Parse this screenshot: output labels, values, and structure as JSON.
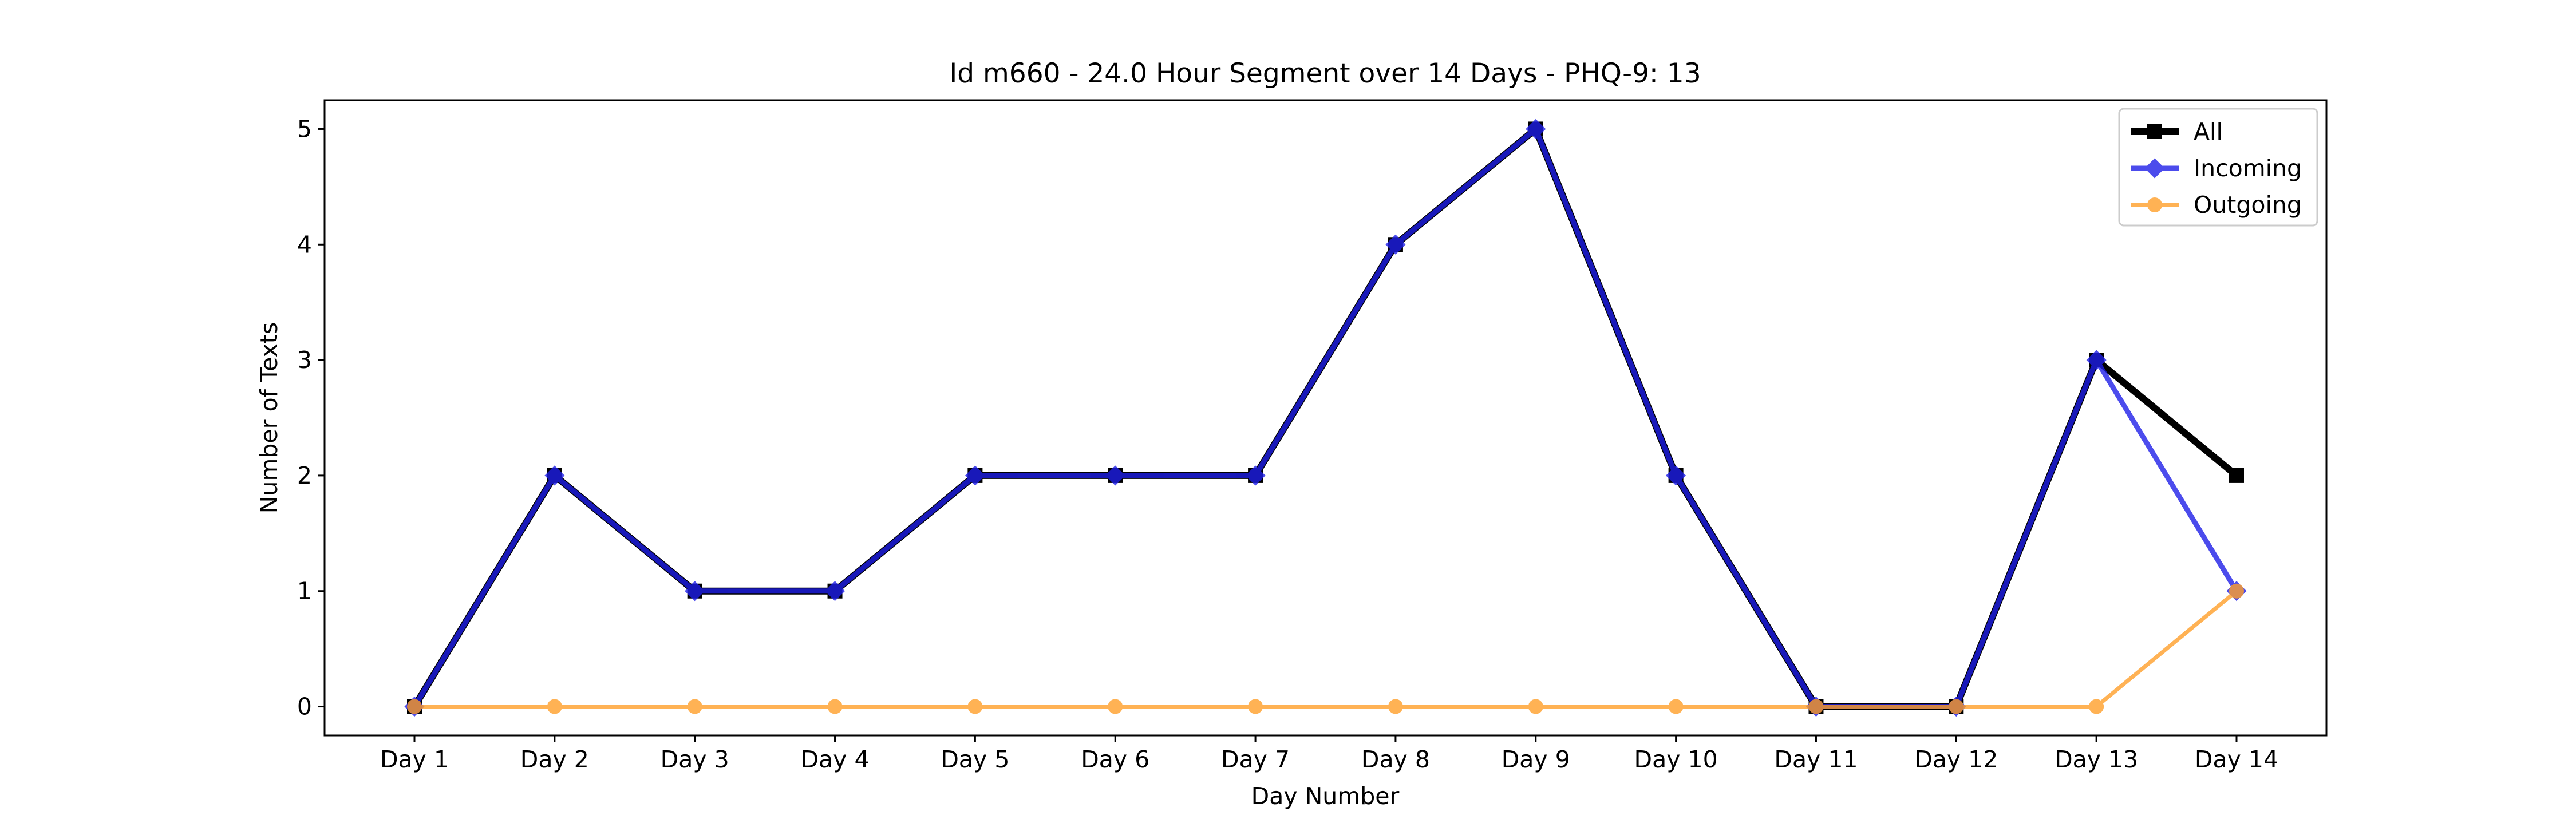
{
  "chart_data": {
    "type": "line",
    "title": "Id m660 - 24.0 Hour Segment over 14 Days - PHQ-9: 13",
    "xlabel": "Day Number",
    "ylabel": "Number of Texts",
    "categories": [
      "Day 1",
      "Day 2",
      "Day 3",
      "Day 4",
      "Day 5",
      "Day 6",
      "Day 7",
      "Day 8",
      "Day 9",
      "Day 10",
      "Day 11",
      "Day 12",
      "Day 13",
      "Day 14"
    ],
    "ylim": [
      -0.25,
      5.25
    ],
    "yticks": [
      "0",
      "1",
      "2",
      "3",
      "4",
      "5"
    ],
    "grid": false,
    "legend_position": "top-right",
    "series": [
      {
        "name": "All",
        "color": "#000000",
        "marker": "square",
        "values": [
          0,
          2,
          1,
          1,
          2,
          2,
          2,
          4,
          5,
          2,
          0,
          0,
          3,
          2
        ]
      },
      {
        "name": "Incoming",
        "color": "#1f1fe8",
        "marker": "diamond",
        "values": [
          0,
          2,
          1,
          1,
          2,
          2,
          2,
          4,
          5,
          2,
          0,
          0,
          3,
          1
        ]
      },
      {
        "name": "Outgoing",
        "color": "#ff9f2a",
        "marker": "circle",
        "values": [
          0,
          0,
          0,
          0,
          0,
          0,
          0,
          0,
          0,
          0,
          0,
          0,
          0,
          1
        ]
      }
    ]
  }
}
